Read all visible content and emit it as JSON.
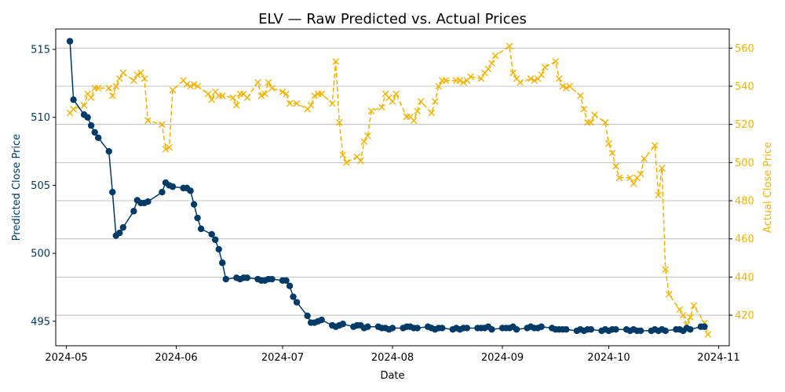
{
  "chart_data": {
    "type": "line",
    "title": "ELV — Raw Predicted vs. Actual Prices",
    "xlabel": "Date",
    "ylabel_left": "Predicted Close Price",
    "ylabel_right": "Actual Close Price",
    "x_ticks": [
      "2024-05",
      "2024-06",
      "2024-07",
      "2024-08",
      "2024-09",
      "2024-10",
      "2024-11"
    ],
    "x_range": [
      "2024-04-28",
      "2024-11-04"
    ],
    "y_left_ticks": [
      495,
      500,
      505,
      510,
      515
    ],
    "y_left_range": [
      493.2,
      516.5
    ],
    "y_right_ticks": [
      420,
      440,
      460,
      480,
      500,
      520,
      540,
      560
    ],
    "y_right_range": [
      404,
      570
    ],
    "grid": "horizontal, right axis",
    "colors": {
      "predicted": "#003a66",
      "actual": "#f5b300"
    },
    "series": [
      {
        "axis": "left",
        "marker": "circle",
        "linestyle": "solid",
        "points": [
          [
            "2024-05-02",
            515.6
          ],
          [
            "2024-05-03",
            511.3
          ],
          [
            "2024-05-06",
            510.2
          ],
          [
            "2024-05-07",
            510.0
          ],
          [
            "2024-05-08",
            509.4
          ],
          [
            "2024-05-09",
            508.9
          ],
          [
            "2024-05-10",
            508.5
          ],
          [
            "2024-05-13",
            507.5
          ],
          [
            "2024-05-14",
            504.5
          ],
          [
            "2024-05-15",
            501.3
          ],
          [
            "2024-05-16",
            501.5
          ],
          [
            "2024-05-17",
            501.9
          ],
          [
            "2024-05-20",
            503.1
          ],
          [
            "2024-05-21",
            503.9
          ],
          [
            "2024-05-22",
            503.7
          ],
          [
            "2024-05-23",
            503.7
          ],
          [
            "2024-05-24",
            503.8
          ],
          [
            "2024-05-28",
            504.5
          ],
          [
            "2024-05-29",
            505.2
          ],
          [
            "2024-05-30",
            505.0
          ],
          [
            "2024-05-31",
            504.9
          ],
          [
            "2024-06-03",
            504.8
          ],
          [
            "2024-06-04",
            504.8
          ],
          [
            "2024-06-05",
            504.6
          ],
          [
            "2024-06-06",
            503.6
          ],
          [
            "2024-06-07",
            502.6
          ],
          [
            "2024-06-08",
            501.8
          ],
          [
            "2024-06-11",
            501.4
          ],
          [
            "2024-06-12",
            501.0
          ],
          [
            "2024-06-13",
            500.3
          ],
          [
            "2024-06-14",
            499.3
          ],
          [
            "2024-06-15",
            498.1
          ],
          [
            "2024-06-18",
            498.2
          ],
          [
            "2024-06-19",
            498.1
          ],
          [
            "2024-06-20",
            498.2
          ],
          [
            "2024-06-21",
            498.2
          ],
          [
            "2024-06-24",
            498.1
          ],
          [
            "2024-06-25",
            498.0
          ],
          [
            "2024-06-26",
            498.0
          ],
          [
            "2024-06-27",
            498.1
          ],
          [
            "2024-06-28",
            498.1
          ],
          [
            "2024-07-01",
            498.0
          ],
          [
            "2024-07-02",
            498.0
          ],
          [
            "2024-07-03",
            497.6
          ],
          [
            "2024-07-04",
            496.8
          ],
          [
            "2024-07-05",
            496.4
          ],
          [
            "2024-07-08",
            495.4
          ],
          [
            "2024-07-09",
            494.9
          ],
          [
            "2024-07-10",
            494.9
          ],
          [
            "2024-07-11",
            495.0
          ],
          [
            "2024-07-12",
            495.1
          ],
          [
            "2024-07-15",
            494.7
          ],
          [
            "2024-07-16",
            494.6
          ],
          [
            "2024-07-17",
            494.7
          ],
          [
            "2024-07-18",
            494.8
          ],
          [
            "2024-07-21",
            494.6
          ],
          [
            "2024-07-22",
            494.7
          ],
          [
            "2024-07-23",
            494.7
          ],
          [
            "2024-07-24",
            494.5
          ],
          [
            "2024-07-25",
            494.6
          ],
          [
            "2024-07-28",
            494.6
          ],
          [
            "2024-07-29",
            494.5
          ],
          [
            "2024-07-30",
            494.5
          ],
          [
            "2024-07-31",
            494.4
          ],
          [
            "2024-08-01",
            494.5
          ],
          [
            "2024-08-04",
            494.5
          ],
          [
            "2024-08-05",
            494.6
          ],
          [
            "2024-08-06",
            494.6
          ],
          [
            "2024-08-07",
            494.5
          ],
          [
            "2024-08-08",
            494.5
          ],
          [
            "2024-08-11",
            494.6
          ],
          [
            "2024-08-12",
            494.5
          ],
          [
            "2024-08-13",
            494.4
          ],
          [
            "2024-08-14",
            494.5
          ],
          [
            "2024-08-15",
            494.5
          ],
          [
            "2024-08-18",
            494.4
          ],
          [
            "2024-08-19",
            494.5
          ],
          [
            "2024-08-20",
            494.4
          ],
          [
            "2024-08-21",
            494.5
          ],
          [
            "2024-08-22",
            494.5
          ],
          [
            "2024-08-25",
            494.5
          ],
          [
            "2024-08-26",
            494.5
          ],
          [
            "2024-08-27",
            494.5
          ],
          [
            "2024-08-28",
            494.6
          ],
          [
            "2024-08-29",
            494.4
          ],
          [
            "2024-09-01",
            494.5
          ],
          [
            "2024-09-02",
            494.5
          ],
          [
            "2024-09-03",
            494.5
          ],
          [
            "2024-09-04",
            494.6
          ],
          [
            "2024-09-05",
            494.4
          ],
          [
            "2024-09-08",
            494.5
          ],
          [
            "2024-09-09",
            494.6
          ],
          [
            "2024-09-10",
            494.5
          ],
          [
            "2024-09-11",
            494.5
          ],
          [
            "2024-09-12",
            494.6
          ],
          [
            "2024-09-15",
            494.5
          ],
          [
            "2024-09-16",
            494.4
          ],
          [
            "2024-09-17",
            494.4
          ],
          [
            "2024-09-18",
            494.4
          ],
          [
            "2024-09-19",
            494.4
          ],
          [
            "2024-09-22",
            494.3
          ],
          [
            "2024-09-23",
            494.4
          ],
          [
            "2024-09-24",
            494.3
          ],
          [
            "2024-09-25",
            494.4
          ],
          [
            "2024-09-26",
            494.4
          ],
          [
            "2024-09-29",
            494.3
          ],
          [
            "2024-09-30",
            494.4
          ],
          [
            "2024-10-01",
            494.3
          ],
          [
            "2024-10-02",
            494.4
          ],
          [
            "2024-10-03",
            494.4
          ],
          [
            "2024-10-06",
            494.4
          ],
          [
            "2024-10-07",
            494.3
          ],
          [
            "2024-10-08",
            494.4
          ],
          [
            "2024-10-09",
            494.3
          ],
          [
            "2024-10-10",
            494.3
          ],
          [
            "2024-10-13",
            494.3
          ],
          [
            "2024-10-14",
            494.4
          ],
          [
            "2024-10-15",
            494.3
          ],
          [
            "2024-10-16",
            494.4
          ],
          [
            "2024-10-17",
            494.3
          ],
          [
            "2024-10-20",
            494.4
          ],
          [
            "2024-10-21",
            494.4
          ],
          [
            "2024-10-22",
            494.3
          ],
          [
            "2024-10-23",
            494.5
          ],
          [
            "2024-10-24",
            494.4
          ],
          [
            "2024-10-27",
            494.6
          ],
          [
            "2024-10-28",
            494.6
          ]
        ]
      },
      {
        "axis": "right",
        "marker": "x",
        "linestyle": "dashed",
        "points": [
          [
            "2024-05-02",
            526
          ],
          [
            "2024-05-03",
            528
          ],
          [
            "2024-05-06",
            530
          ],
          [
            "2024-05-07",
            536
          ],
          [
            "2024-05-08",
            534
          ],
          [
            "2024-05-09",
            539
          ],
          [
            "2024-05-10",
            539
          ],
          [
            "2024-05-13",
            539
          ],
          [
            "2024-05-14",
            535
          ],
          [
            "2024-05-15",
            540
          ],
          [
            "2024-05-16",
            544
          ],
          [
            "2024-05-17",
            547
          ],
          [
            "2024-05-20",
            543
          ],
          [
            "2024-05-21",
            546
          ],
          [
            "2024-05-22",
            547
          ],
          [
            "2024-05-23",
            544
          ],
          [
            "2024-05-24",
            522
          ],
          [
            "2024-05-28",
            520
          ],
          [
            "2024-05-29",
            507
          ],
          [
            "2024-05-30",
            508
          ],
          [
            "2024-05-31",
            538
          ],
          [
            "2024-06-03",
            543
          ],
          [
            "2024-06-04",
            541
          ],
          [
            "2024-06-05",
            540
          ],
          [
            "2024-06-06",
            541
          ],
          [
            "2024-06-07",
            540
          ],
          [
            "2024-06-10",
            536
          ],
          [
            "2024-06-11",
            533
          ],
          [
            "2024-06-12",
            537
          ],
          [
            "2024-06-13",
            535
          ],
          [
            "2024-06-14",
            535
          ],
          [
            "2024-06-17",
            534
          ],
          [
            "2024-06-18",
            530
          ],
          [
            "2024-06-19",
            536
          ],
          [
            "2024-06-20",
            536
          ],
          [
            "2024-06-21",
            534
          ],
          [
            "2024-06-24",
            542
          ],
          [
            "2024-06-25",
            535
          ],
          [
            "2024-06-26",
            536
          ],
          [
            "2024-06-27",
            542
          ],
          [
            "2024-06-28",
            539
          ],
          [
            "2024-07-01",
            537
          ],
          [
            "2024-07-02",
            536
          ],
          [
            "2024-07-03",
            531
          ],
          [
            "2024-07-05",
            531
          ],
          [
            "2024-07-08",
            528
          ],
          [
            "2024-07-09",
            530
          ],
          [
            "2024-07-10",
            535
          ],
          [
            "2024-07-11",
            536
          ],
          [
            "2024-07-12",
            536
          ],
          [
            "2024-07-15",
            531
          ],
          [
            "2024-07-16",
            553
          ],
          [
            "2024-07-17",
            521
          ],
          [
            "2024-07-18",
            504
          ],
          [
            "2024-07-19",
            500
          ],
          [
            "2024-07-22",
            503
          ],
          [
            "2024-07-23",
            501
          ],
          [
            "2024-07-24",
            511
          ],
          [
            "2024-07-25",
            514
          ],
          [
            "2024-07-26",
            527
          ],
          [
            "2024-07-29",
            529
          ],
          [
            "2024-07-30",
            536
          ],
          [
            "2024-07-31",
            534
          ],
          [
            "2024-08-01",
            532
          ],
          [
            "2024-08-02",
            536
          ],
          [
            "2024-08-05",
            524
          ],
          [
            "2024-08-06",
            524
          ],
          [
            "2024-08-07",
            522
          ],
          [
            "2024-08-08",
            527
          ],
          [
            "2024-08-09",
            532
          ],
          [
            "2024-08-12",
            526
          ],
          [
            "2024-08-13",
            532
          ],
          [
            "2024-08-14",
            540
          ],
          [
            "2024-08-15",
            543
          ],
          [
            "2024-08-16",
            543
          ],
          [
            "2024-08-19",
            543
          ],
          [
            "2024-08-20",
            543
          ],
          [
            "2024-08-21",
            542
          ],
          [
            "2024-08-22",
            543
          ],
          [
            "2024-08-23",
            545
          ],
          [
            "2024-08-26",
            544
          ],
          [
            "2024-08-27",
            547
          ],
          [
            "2024-08-28",
            549
          ],
          [
            "2024-08-29",
            552
          ],
          [
            "2024-08-30",
            556
          ],
          [
            "2024-09-03",
            561
          ],
          [
            "2024-09-04",
            547
          ],
          [
            "2024-09-05",
            544
          ],
          [
            "2024-09-06",
            542
          ],
          [
            "2024-09-09",
            544
          ],
          [
            "2024-09-10",
            543
          ],
          [
            "2024-09-11",
            544
          ],
          [
            "2024-09-12",
            546
          ],
          [
            "2024-09-13",
            550
          ],
          [
            "2024-09-16",
            553
          ],
          [
            "2024-09-17",
            544
          ],
          [
            "2024-09-18",
            540
          ],
          [
            "2024-09-19",
            539
          ],
          [
            "2024-09-20",
            540
          ],
          [
            "2024-09-23",
            535
          ],
          [
            "2024-09-24",
            528
          ],
          [
            "2024-09-25",
            521
          ],
          [
            "2024-09-26",
            521
          ],
          [
            "2024-09-27",
            525
          ],
          [
            "2024-09-30",
            521
          ],
          [
            "2024-10-01",
            510
          ],
          [
            "2024-10-02",
            505
          ],
          [
            "2024-10-03",
            498
          ],
          [
            "2024-10-04",
            492
          ],
          [
            "2024-10-07",
            492
          ],
          [
            "2024-10-08",
            489
          ],
          [
            "2024-10-09",
            492
          ],
          [
            "2024-10-10",
            494
          ],
          [
            "2024-10-11",
            502
          ],
          [
            "2024-10-14",
            509
          ],
          [
            "2024-10-15",
            483
          ],
          [
            "2024-10-16",
            497
          ],
          [
            "2024-10-17",
            444
          ],
          [
            "2024-10-18",
            431
          ],
          [
            "2024-10-21",
            423
          ],
          [
            "2024-10-22",
            420
          ],
          [
            "2024-10-23",
            415
          ],
          [
            "2024-10-24",
            419
          ],
          [
            "2024-10-25",
            425
          ],
          [
            "2024-10-28",
            416
          ],
          [
            "2024-10-29",
            410
          ]
        ]
      }
    ]
  }
}
